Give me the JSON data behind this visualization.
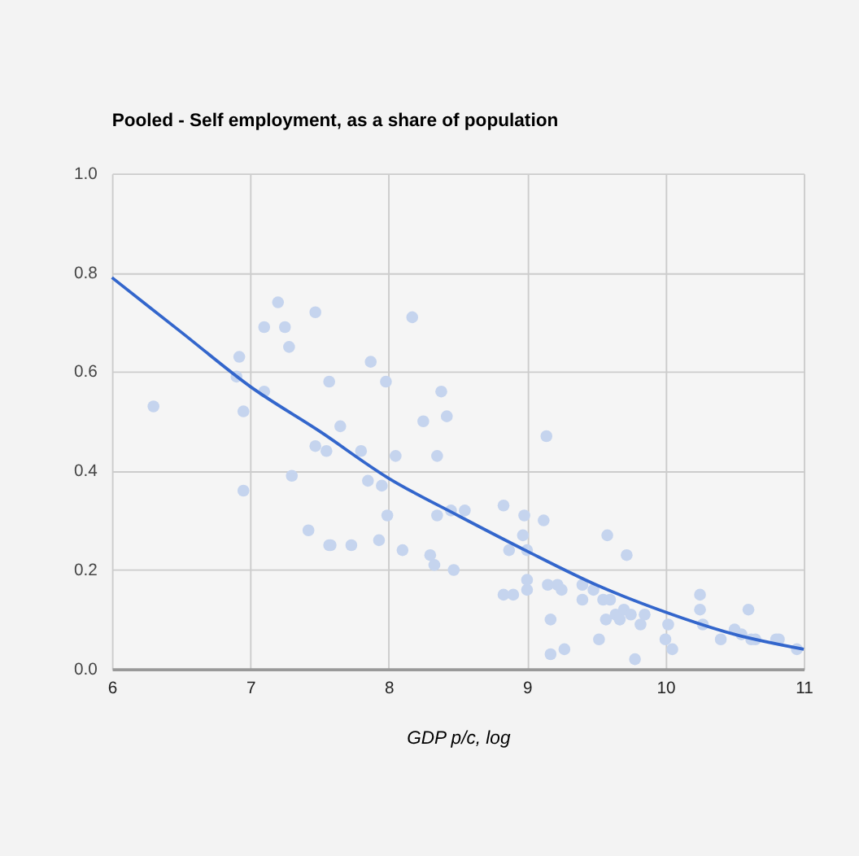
{
  "chart_data": {
    "type": "scatter",
    "title": "Pooled - Self employment, as a share of  population",
    "xlabel": "GDP p/c, log",
    "xlim": [
      6,
      11
    ],
    "xticks": [
      {
        "value": 6,
        "label": "6"
      },
      {
        "value": 7,
        "label": "7"
      },
      {
        "value": 8,
        "label": "8"
      },
      {
        "value": 9,
        "label": "9"
      },
      {
        "value": 10,
        "label": "10"
      },
      {
        "value": 11,
        "label": "11"
      }
    ],
    "ylim": [
      0,
      1
    ],
    "yticks": [
      {
        "value": 0,
        "label": "0.0"
      },
      {
        "value": 0.2,
        "label": "0.2"
      },
      {
        "value": 0.4,
        "label": "0.4"
      },
      {
        "value": 0.6,
        "label": "0.6"
      },
      {
        "value": 0.8,
        "label": "0.8"
      },
      {
        "value": 1,
        "label": "1.0"
      }
    ],
    "grid": true,
    "series": [
      {
        "color": "#c5d4ee",
        "marker": "circle",
        "x": [
          6.3,
          6.9,
          6.92,
          6.95,
          6.95,
          7.1,
          7.1,
          7.2,
          7.25,
          7.28,
          7.3,
          7.42,
          7.47,
          7.47,
          7.55,
          7.57,
          7.57,
          7.58,
          7.65,
          7.73,
          7.8,
          7.85,
          7.87,
          7.93,
          7.95,
          7.98,
          7.99,
          8.05,
          8.1,
          8.17,
          8.25,
          8.3,
          8.33,
          8.35,
          8.35,
          8.38,
          8.42,
          8.45,
          8.47,
          8.55,
          8.83,
          8.83,
          8.9,
          8.87,
          8.97,
          8.98,
          9.0,
          9.0,
          9.0,
          9.12,
          9.14,
          9.15,
          9.17,
          9.17,
          9.22,
          9.25,
          9.27,
          9.4,
          9.4,
          9.48,
          9.52,
          9.55,
          9.57,
          9.58,
          9.6,
          9.64,
          9.67,
          9.7,
          9.72,
          9.75,
          9.78,
          9.82,
          9.85,
          10.02,
          10.0,
          10.05,
          10.25,
          10.25,
          10.27,
          10.4,
          10.5,
          10.55,
          10.6,
          10.65,
          10.62,
          10.8,
          10.82,
          10.95
        ],
        "values": [
          0.53,
          0.59,
          0.63,
          0.52,
          0.36,
          0.69,
          0.56,
          0.74,
          0.69,
          0.65,
          0.39,
          0.28,
          0.72,
          0.45,
          0.44,
          0.58,
          0.25,
          0.25,
          0.49,
          0.25,
          0.44,
          0.38,
          0.62,
          0.26,
          0.37,
          0.58,
          0.31,
          0.43,
          0.24,
          0.71,
          0.5,
          0.23,
          0.21,
          0.31,
          0.43,
          0.56,
          0.51,
          0.32,
          0.2,
          0.32,
          0.33,
          0.15,
          0.15,
          0.24,
          0.27,
          0.31,
          0.24,
          0.16,
          0.18,
          0.3,
          0.47,
          0.17,
          0.1,
          0.03,
          0.17,
          0.16,
          0.04,
          0.17,
          0.14,
          0.16,
          0.06,
          0.14,
          0.1,
          0.27,
          0.14,
          0.11,
          0.1,
          0.12,
          0.23,
          0.11,
          0.02,
          0.09,
          0.11,
          0.09,
          0.06,
          0.04,
          0.15,
          0.12,
          0.09,
          0.06,
          0.08,
          0.07,
          0.12,
          0.06,
          0.06,
          0.06,
          0.06,
          0.04
        ]
      },
      {
        "type": "line",
        "color": "#3366cc",
        "marker": "none",
        "line_style": "solid",
        "x": [
          6,
          6.5,
          7,
          7.5,
          8,
          8.5,
          9,
          9.5,
          10,
          10.5,
          11
        ],
        "values": [
          0.79,
          0.68,
          0.57,
          0.48,
          0.385,
          0.31,
          0.238,
          0.17,
          0.115,
          0.07,
          0.04
        ]
      }
    ]
  }
}
